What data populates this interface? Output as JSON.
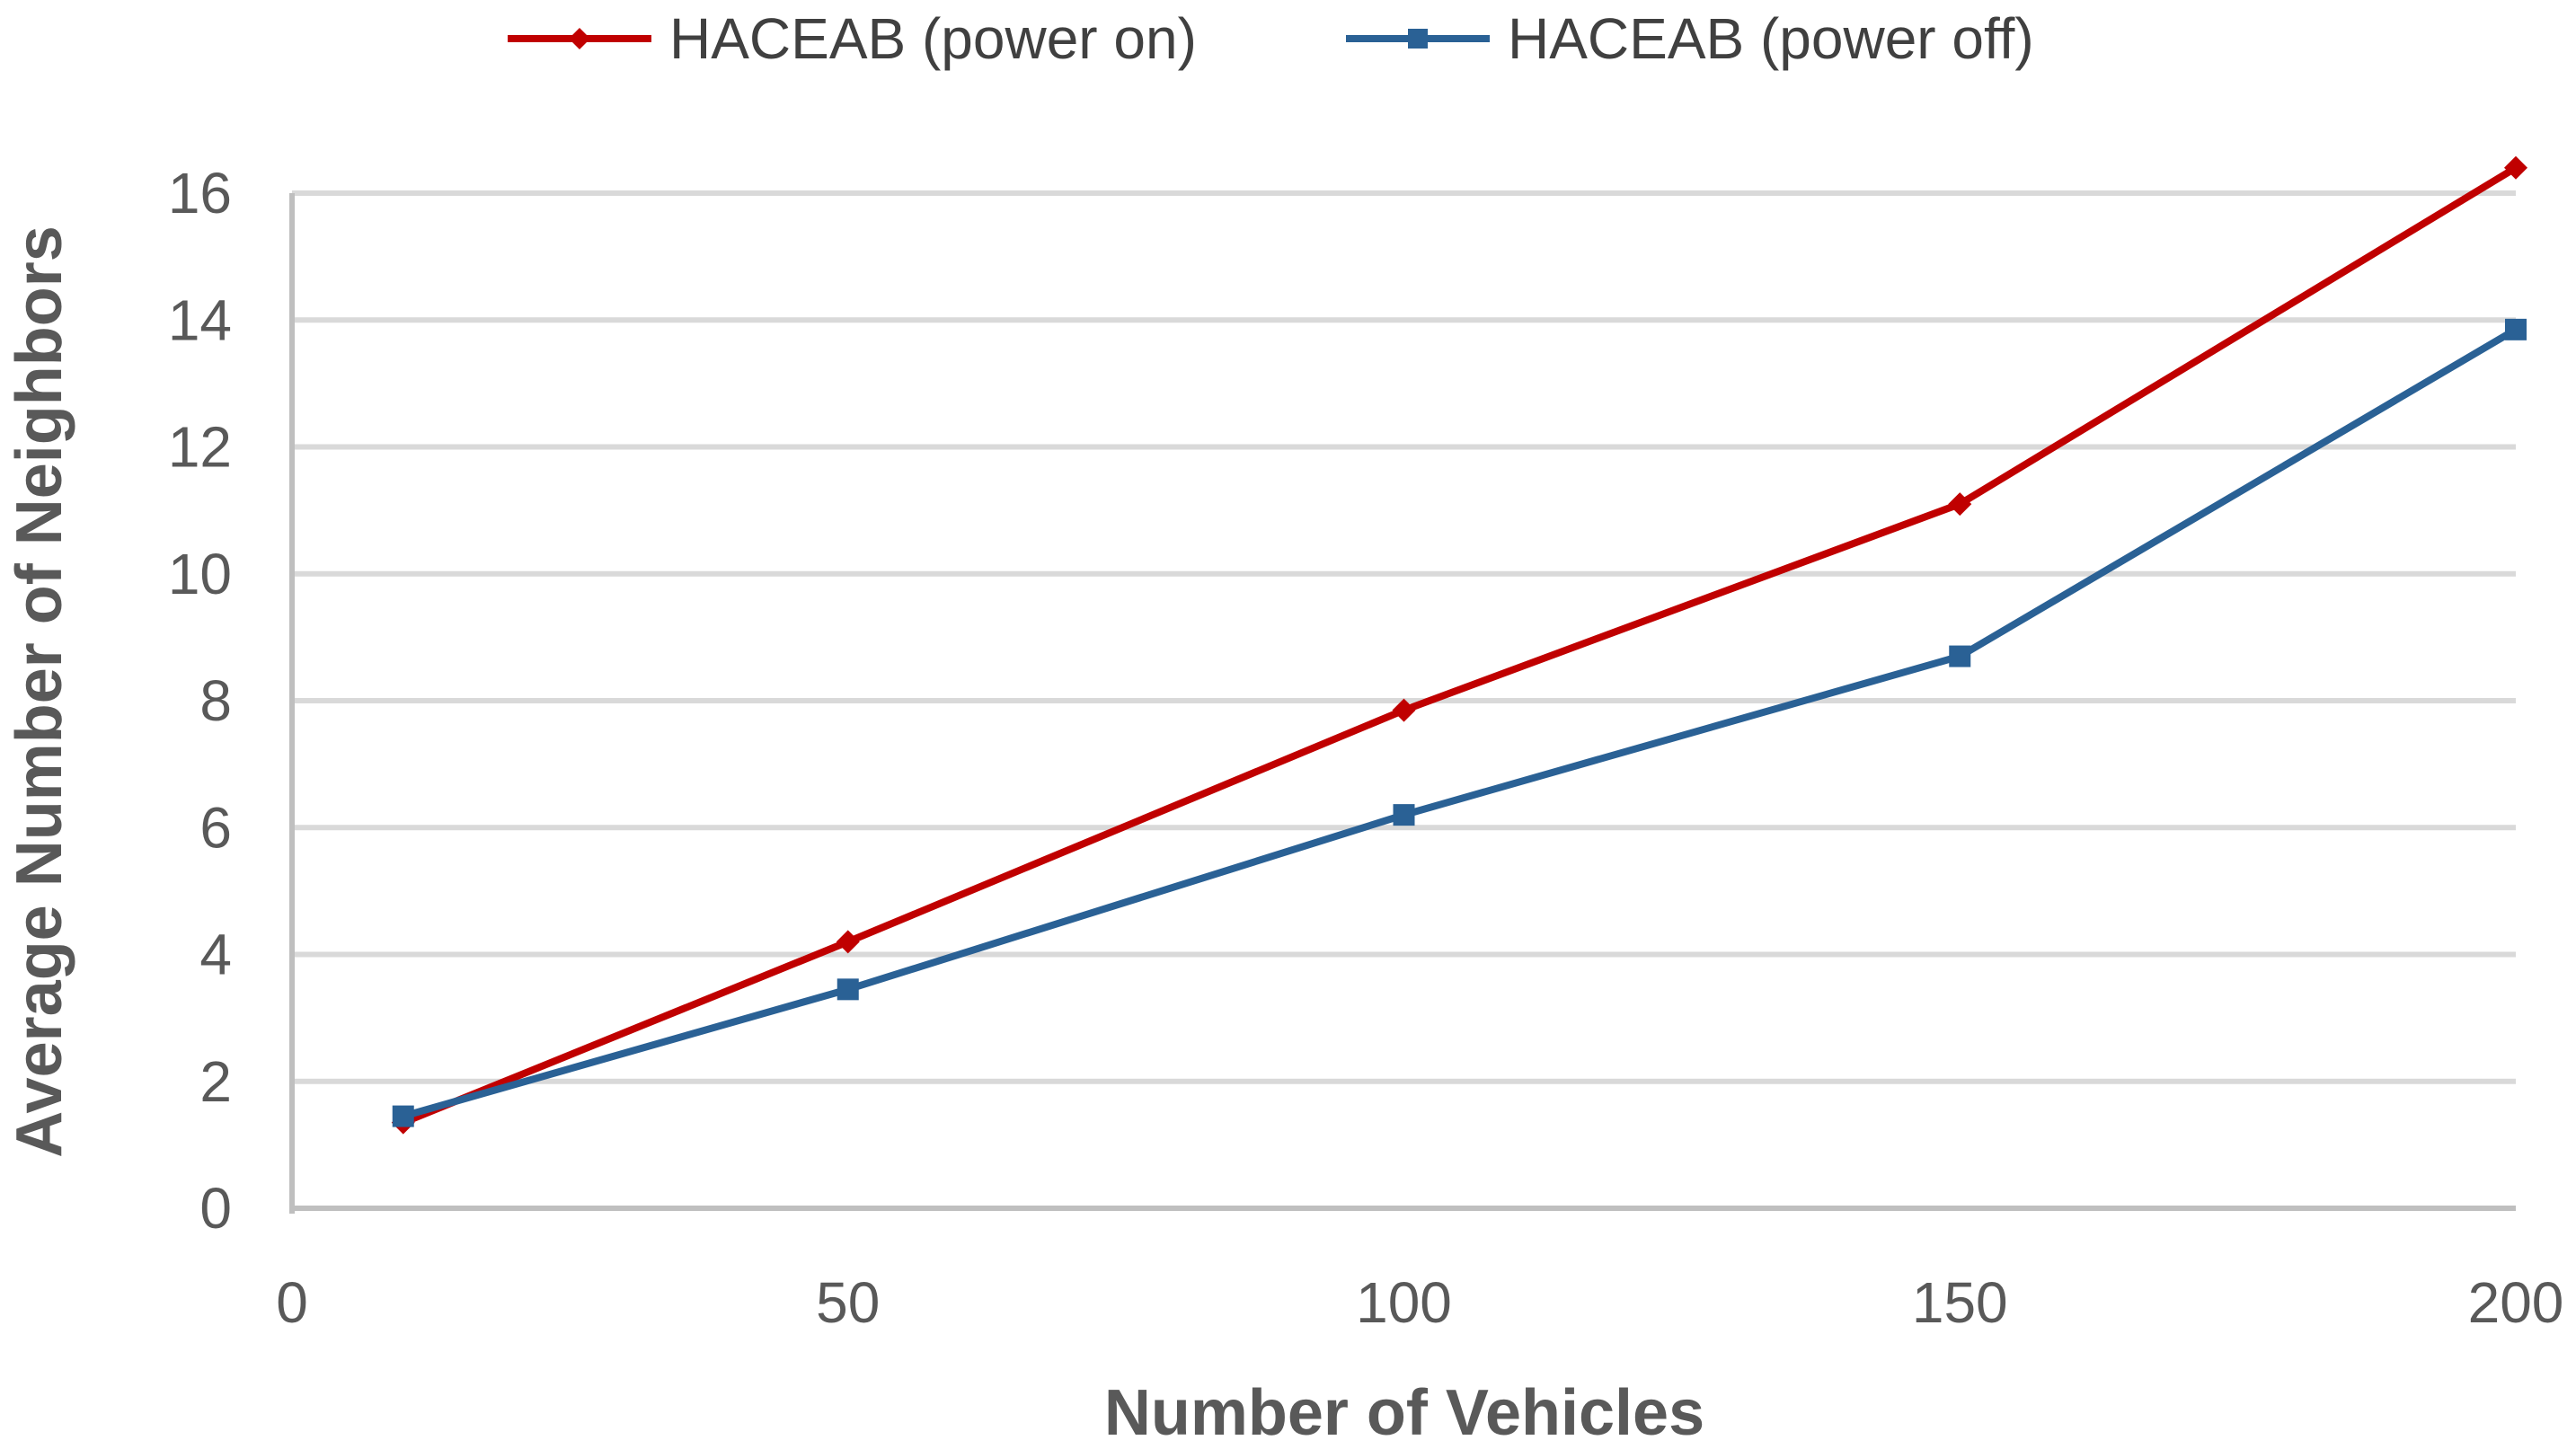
{
  "chart_data": {
    "type": "line",
    "title": "",
    "xlabel": "Number of Vehicles",
    "ylabel": "Average Number of Neighbors",
    "xlim": [
      0,
      200
    ],
    "ylim": [
      0,
      16
    ],
    "xticks": [
      0,
      50,
      100,
      150,
      200
    ],
    "yticks": [
      0,
      2,
      4,
      6,
      8,
      10,
      12,
      14,
      16
    ],
    "grid": true,
    "legend_position": "top-center",
    "series": [
      {
        "name": "HACEAB (power on)",
        "color": "#C00000",
        "marker": "diamond",
        "x": [
          10,
          50,
          100,
          150,
          200
        ],
        "values": [
          1.35,
          4.2,
          7.85,
          11.1,
          16.4
        ]
      },
      {
        "name": "HACEAB (power off)",
        "color": "#2A6195",
        "marker": "square",
        "x": [
          10,
          50,
          100,
          150,
          200
        ],
        "values": [
          1.45,
          3.45,
          6.2,
          8.7,
          13.85
        ]
      }
    ]
  }
}
